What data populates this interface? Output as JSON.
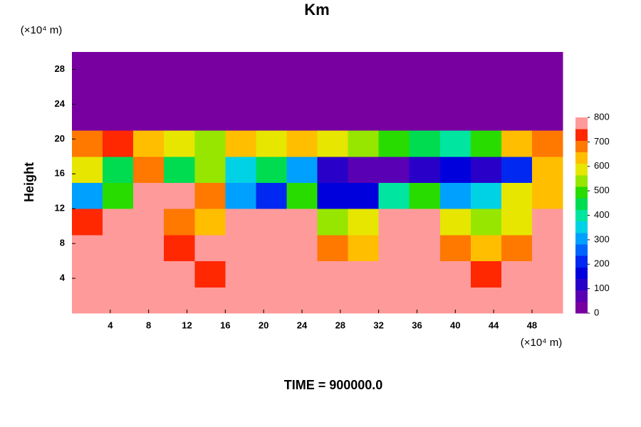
{
  "chart_data": {
    "type": "heatmap",
    "title": "Km",
    "x_label": "(×10⁴ m)",
    "y_unit": "(×10⁴ m)",
    "y_label": "Height",
    "footer": "TIME = 900000.0",
    "xlim": [
      0,
      51.2
    ],
    "ylim": [
      0,
      30
    ],
    "xticks": [
      4,
      8,
      12,
      16,
      20,
      24,
      28,
      32,
      36,
      40,
      44,
      48
    ],
    "yticks": [
      4,
      8,
      12,
      16,
      20,
      24,
      28
    ],
    "x": [
      1.6,
      4.8,
      8.0,
      11.2,
      14.4,
      17.6,
      20.8,
      24.0,
      27.2,
      30.4,
      33.6,
      36.8,
      40.0,
      43.2,
      46.4,
      49.6
    ],
    "y": [
      1.5,
      4.5,
      7.5,
      10.5,
      13.5,
      16.5,
      19.5,
      22.5,
      25.5,
      28.5
    ],
    "z": [
      [
        800,
        800,
        800,
        800,
        800,
        800,
        800,
        800,
        800,
        800,
        800,
        800,
        800,
        800,
        800,
        800
      ],
      [
        800,
        800,
        800,
        800,
        750,
        800,
        800,
        800,
        800,
        800,
        800,
        800,
        800,
        750,
        800,
        800
      ],
      [
        800,
        800,
        800,
        750,
        800,
        800,
        800,
        800,
        700,
        650,
        800,
        800,
        700,
        650,
        700,
        800
      ],
      [
        750,
        800,
        800,
        700,
        650,
        800,
        800,
        800,
        550,
        600,
        800,
        800,
        600,
        550,
        600,
        800
      ],
      [
        300,
        500,
        800,
        800,
        700,
        300,
        200,
        500,
        150,
        150,
        400,
        500,
        300,
        350,
        600,
        650
      ],
      [
        600,
        450,
        700,
        450,
        550,
        350,
        450,
        300,
        100,
        50,
        50,
        100,
        150,
        100,
        200,
        650
      ],
      [
        700,
        750,
        650,
        600,
        550,
        650,
        600,
        650,
        600,
        550,
        500,
        450,
        400,
        500,
        650,
        700
      ],
      [
        0,
        0,
        0,
        0,
        0,
        0,
        0,
        0,
        0,
        0,
        0,
        0,
        0,
        0,
        0,
        0
      ],
      [
        0,
        0,
        0,
        0,
        0,
        0,
        0,
        0,
        0,
        0,
        0,
        0,
        0,
        0,
        0,
        0
      ],
      [
        0,
        0,
        0,
        0,
        0,
        0,
        0,
        0,
        0,
        0,
        0,
        0,
        0,
        0,
        0,
        0
      ]
    ],
    "levels": [
      0,
      50,
      100,
      150,
      200,
      250,
      300,
      350,
      400,
      450,
      500,
      550,
      600,
      650,
      700,
      750,
      800
    ],
    "colors": [
      "#7800a0",
      "#5a00b4",
      "#2800c8",
      "#0000dc",
      "#0028f0",
      "#0064ff",
      "#00a0ff",
      "#00d2e6",
      "#00e6a0",
      "#00dc50",
      "#28dc00",
      "#96e600",
      "#e6e600",
      "#ffbe00",
      "#ff7800",
      "#ff2800",
      "#ff9a9a"
    ],
    "colorbar_ticks": [
      0,
      100,
      200,
      300,
      400,
      500,
      600,
      700,
      800
    ]
  }
}
